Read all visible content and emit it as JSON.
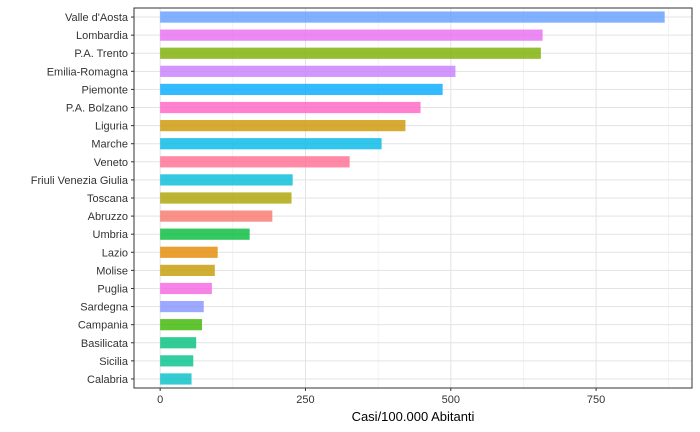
{
  "chart_data": {
    "type": "bar",
    "orientation": "horizontal",
    "title": "",
    "xlabel": "Casi/100.000 Abitanti",
    "ylabel": "",
    "xlim": [
      -45,
      915
    ],
    "x_ticks": [
      0,
      250,
      500,
      750
    ],
    "grid": true,
    "legend": "none",
    "categories": [
      "Valle d'Aosta",
      "Lombardia",
      "P.A. Trento",
      "Emilia-Romagna",
      "Piemonte",
      "P.A. Bolzano",
      "Liguria",
      "Marche",
      "Veneto",
      "Friuli Venezia Giulia",
      "Toscana",
      "Abruzzo",
      "Umbria",
      "Lazio",
      "Molise",
      "Puglia",
      "Sardegna",
      "Campania",
      "Basilicata",
      "Sicilia",
      "Calabria"
    ],
    "values": [
      868,
      658,
      655,
      508,
      486,
      448,
      422,
      381,
      326,
      228,
      226,
      193,
      154,
      99,
      94,
      89,
      75,
      72,
      62,
      57,
      54
    ],
    "colors": [
      "#619CFF",
      "#E76BF3",
      "#7CAE00",
      "#C77CFF",
      "#00A9FF",
      "#FF61C3",
      "#CD9600",
      "#00B8E7",
      "#FF6C91",
      "#00BCD8",
      "#ABA300",
      "#F8766D",
      "#00BA38",
      "#E58700",
      "#C49A00",
      "#F564E3",
      "#8494FF",
      "#39B600",
      "#00BF7D",
      "#00C08B",
      "#00BFC4"
    ]
  }
}
